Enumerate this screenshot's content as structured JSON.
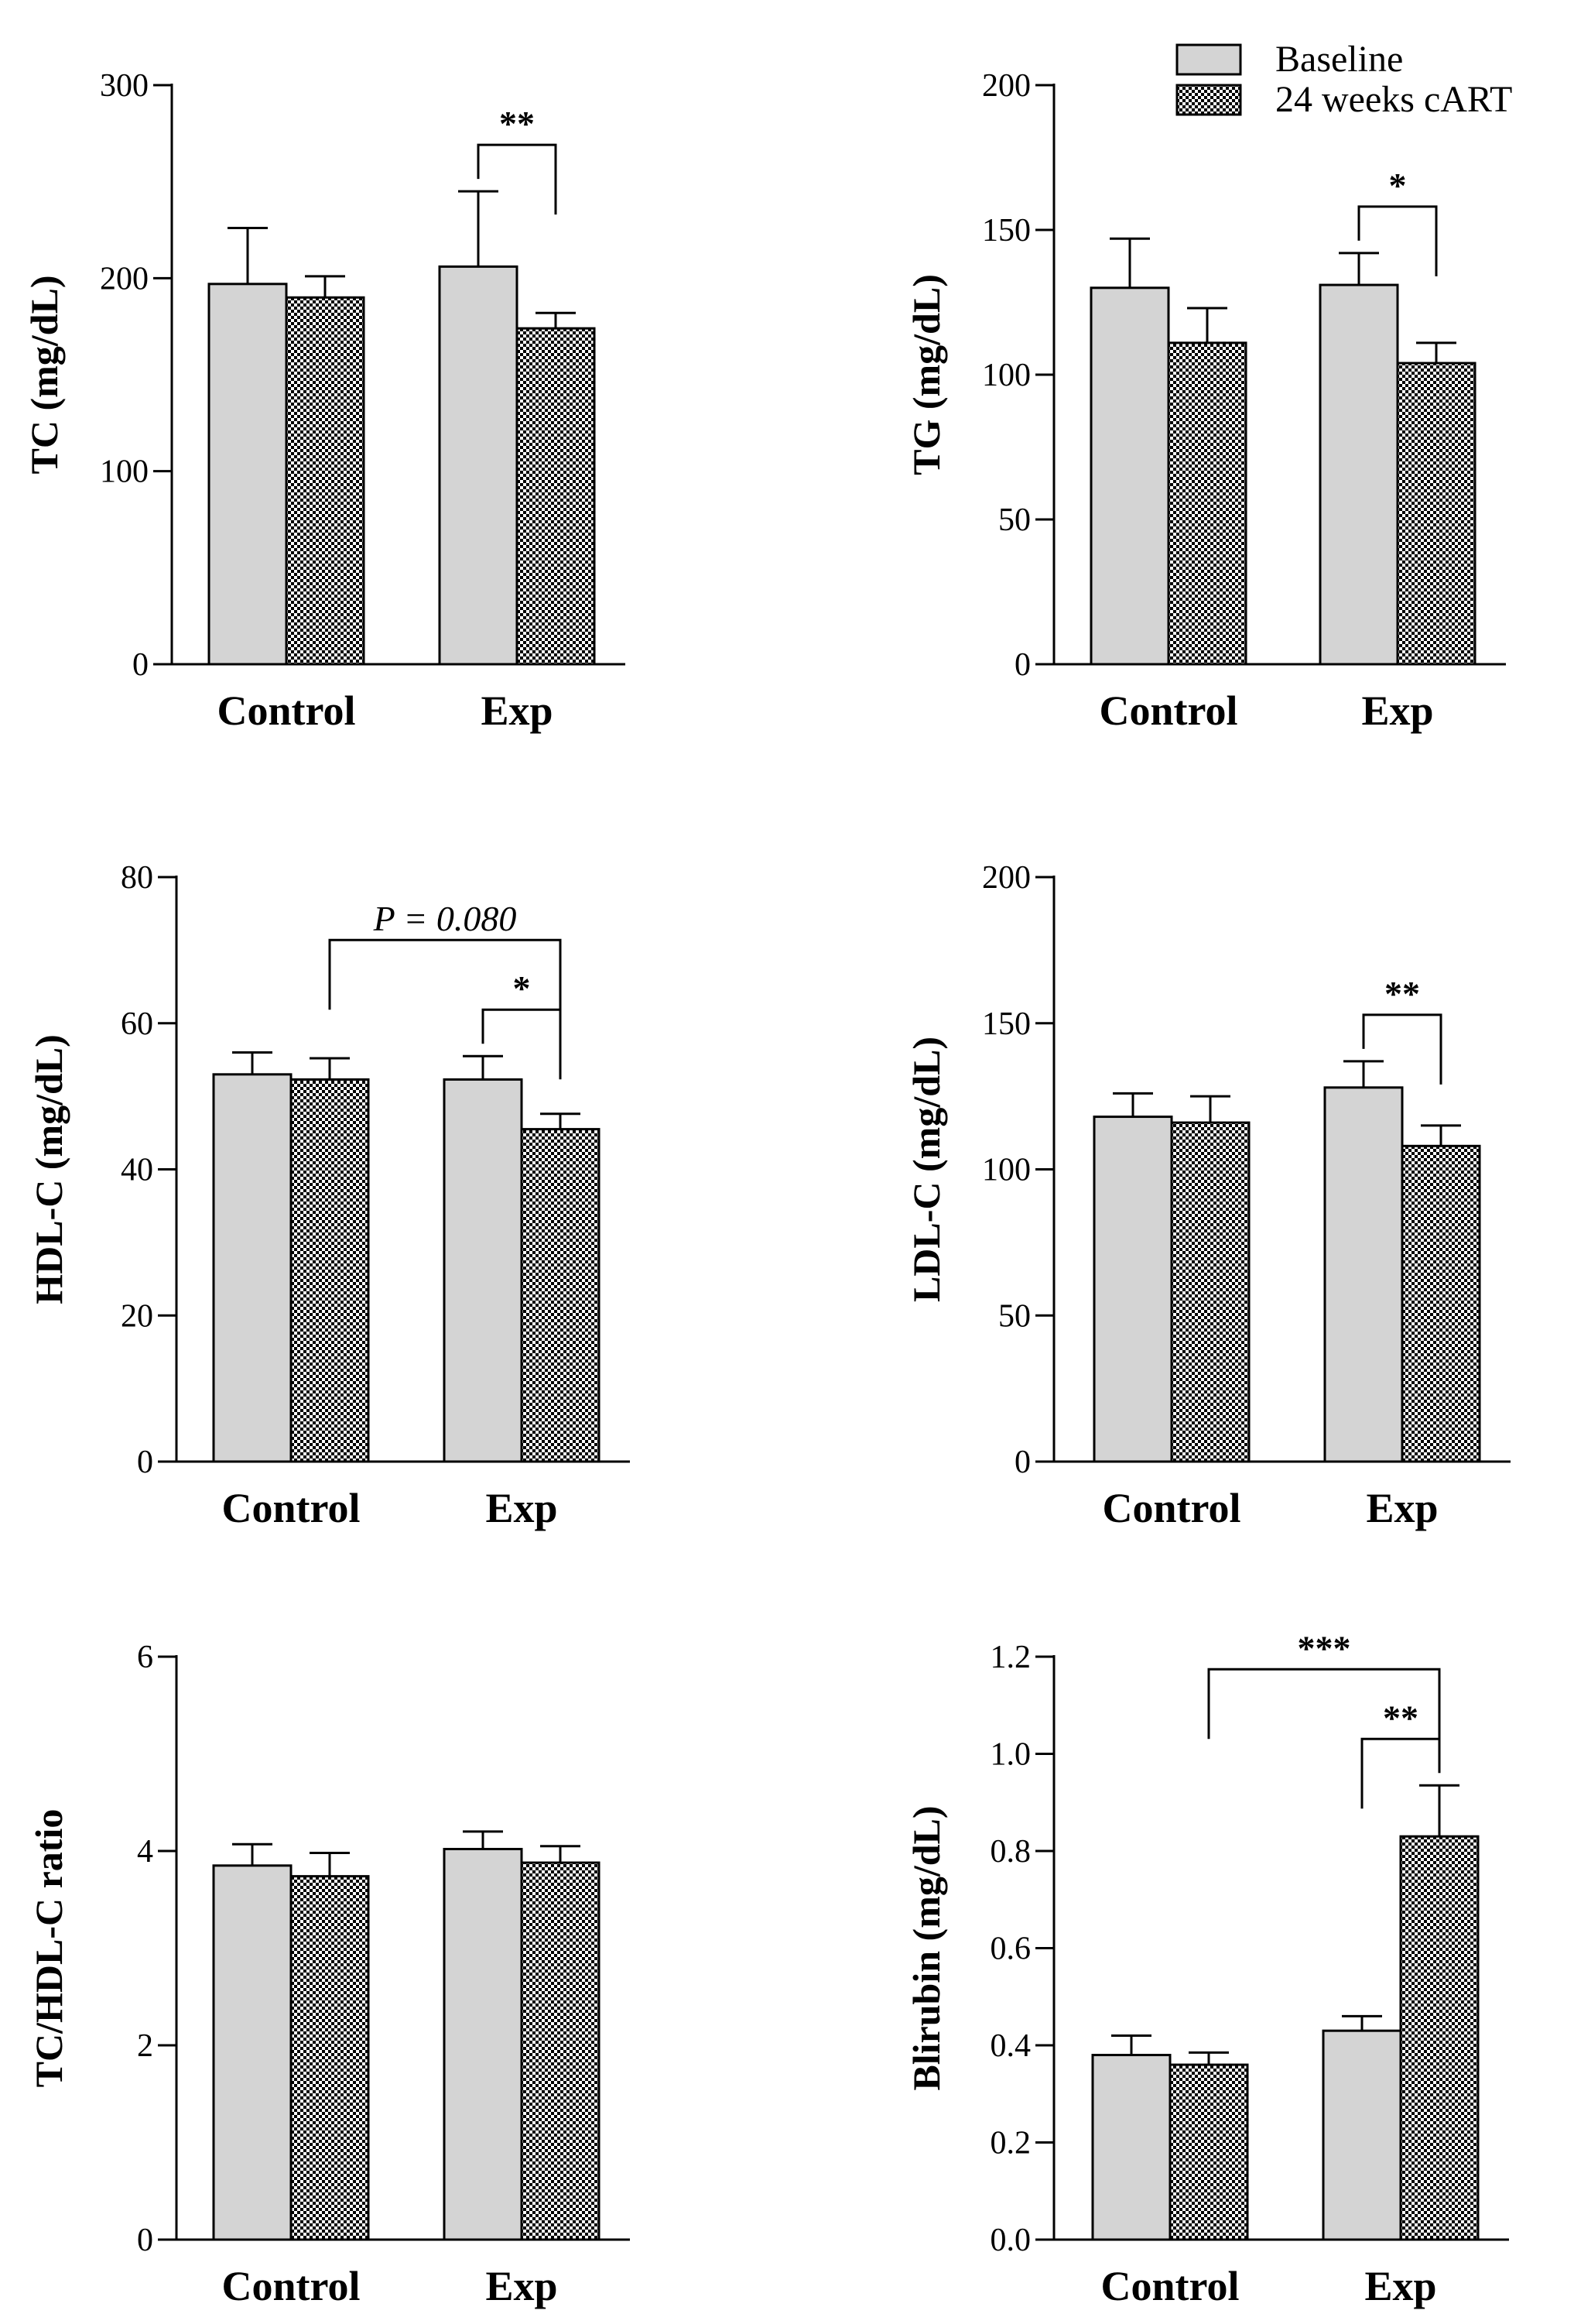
{
  "legend": {
    "series": [
      {
        "name": "Baseline",
        "pattern": "solid",
        "color": "#d4d4d4"
      },
      {
        "name": "24 weeks cART",
        "pattern": "checker",
        "color": "#000000"
      }
    ]
  },
  "chart_data": [
    {
      "type": "bar",
      "ylabel": "TC (mg/dL)",
      "categories": [
        "Control",
        "Exp"
      ],
      "ylim": [
        0,
        300
      ],
      "yticks": [
        "0",
        "100",
        "200",
        "300"
      ],
      "series": [
        {
          "name": "Baseline",
          "values": [
            197,
            206
          ],
          "errors": [
            29,
            39
          ]
        },
        {
          "name": "24 weeks cART",
          "values": [
            190,
            174
          ],
          "errors": [
            11,
            8
          ]
        }
      ],
      "annotations": [
        {
          "label": "**",
          "from": [
            1,
            0
          ],
          "to": [
            1,
            1
          ],
          "style": "bold"
        }
      ]
    },
    {
      "type": "bar",
      "ylabel": "TG (mg/dL)",
      "categories": [
        "Control",
        "Exp"
      ],
      "ylim": [
        0,
        200
      ],
      "yticks": [
        "0",
        "50",
        "100",
        "150",
        "200"
      ],
      "series": [
        {
          "name": "Baseline",
          "values": [
            130,
            131
          ],
          "errors": [
            17,
            11
          ]
        },
        {
          "name": "24 weeks cART",
          "values": [
            111,
            104
          ],
          "errors": [
            12,
            7
          ]
        }
      ],
      "annotations": [
        {
          "label": "*",
          "from": [
            1,
            0
          ],
          "to": [
            1,
            1
          ],
          "style": "bold"
        }
      ]
    },
    {
      "type": "bar",
      "ylabel": "HDL-C (mg/dL)",
      "categories": [
        "Control",
        "Exp"
      ],
      "ylim": [
        0,
        80
      ],
      "yticks": [
        "0",
        "20",
        "40",
        "60",
        "80"
      ],
      "series": [
        {
          "name": "Baseline",
          "values": [
            53,
            52.3
          ],
          "errors": [
            3,
            3.2
          ]
        },
        {
          "name": "24 weeks cART",
          "values": [
            52.3,
            45.5
          ],
          "errors": [
            2.9,
            2.1
          ]
        }
      ],
      "annotations": [
        {
          "label": "P = 0.080",
          "from": [
            0,
            1
          ],
          "to": [
            1,
            1
          ],
          "style": "italic"
        },
        {
          "label": "*",
          "from": [
            1,
            0
          ],
          "to": [
            1,
            1
          ],
          "style": "bold"
        }
      ]
    },
    {
      "type": "bar",
      "ylabel": "LDL-C (mg/dL)",
      "categories": [
        "Control",
        "Exp"
      ],
      "ylim": [
        0,
        200
      ],
      "yticks": [
        "0",
        "50",
        "100",
        "150",
        "200"
      ],
      "series": [
        {
          "name": "Baseline",
          "values": [
            118,
            128
          ],
          "errors": [
            8,
            9
          ]
        },
        {
          "name": "24 weeks cART",
          "values": [
            116,
            108
          ],
          "errors": [
            9,
            7
          ]
        }
      ],
      "annotations": [
        {
          "label": "**",
          "from": [
            1,
            0
          ],
          "to": [
            1,
            1
          ],
          "style": "bold"
        }
      ]
    },
    {
      "type": "bar",
      "ylabel": "TC/HDL-C ratio",
      "categories": [
        "Control",
        "Exp"
      ],
      "ylim": [
        0,
        6
      ],
      "yticks": [
        "0",
        "2",
        "4",
        "6"
      ],
      "series": [
        {
          "name": "Baseline",
          "values": [
            3.85,
            4.02
          ],
          "errors": [
            0.22,
            0.18
          ]
        },
        {
          "name": "24 weeks cART",
          "values": [
            3.74,
            3.88
          ],
          "errors": [
            0.24,
            0.17
          ]
        }
      ],
      "annotations": []
    },
    {
      "type": "bar",
      "ylabel": "Blirubin (mg/dL)",
      "categories": [
        "Control",
        "Exp"
      ],
      "ylim": [
        0,
        1.2
      ],
      "yticks": [
        "0.0",
        "0.2",
        "0.4",
        "0.6",
        "0.8",
        "1.0",
        "1.2"
      ],
      "series": [
        {
          "name": "Baseline",
          "values": [
            0.38,
            0.43
          ],
          "errors": [
            0.04,
            0.03
          ]
        },
        {
          "name": "24 weeks cART",
          "values": [
            0.36,
            0.83
          ],
          "errors": [
            0.025,
            0.105
          ]
        }
      ],
      "annotations": [
        {
          "label": "***",
          "from": [
            0,
            1
          ],
          "to": [
            1,
            1
          ],
          "style": "bold"
        },
        {
          "label": "**",
          "from": [
            1,
            0
          ],
          "to": [
            1,
            1
          ],
          "style": "bold"
        }
      ]
    }
  ]
}
